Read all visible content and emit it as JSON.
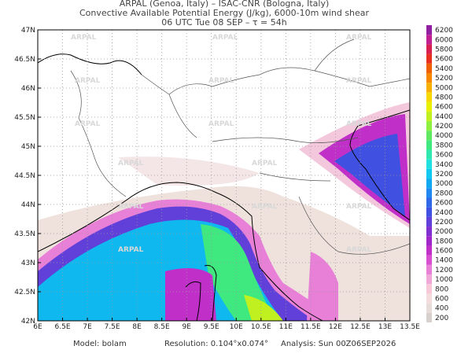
{
  "header": {
    "line1": "ARPAL (Genoa, Italy)  –  ISAC-CNR (Bologna, Italy)",
    "line2": "Convective Available Potential Energy (J/kg), 6000-10m wind shear",
    "line3": "06 UTC Tue 08 SEP  –  τ = 54h"
  },
  "map": {
    "watermark": "ARPAL",
    "lon_ticks": [
      "6E",
      "6.5E",
      "7E",
      "7.5E",
      "8E",
      "8.5E",
      "9E",
      "9.5E",
      "10E",
      "10.5E",
      "11E",
      "11.5E",
      "12E",
      "12.5E",
      "13E",
      "13.5E"
    ],
    "lat_ticks": [
      "42N",
      "42.5N",
      "43N",
      "43.5N",
      "44N",
      "44.5N",
      "45N",
      "45.5N",
      "46N",
      "46.5N",
      "47N"
    ]
  },
  "colorbar": {
    "levels": [
      200,
      400,
      600,
      800,
      1000,
      1200,
      1400,
      1600,
      1800,
      2000,
      2200,
      2400,
      2600,
      2800,
      3000,
      3200,
      3400,
      3600,
      3800,
      4000,
      4200,
      4400,
      4600,
      4800,
      5000,
      5200,
      5400,
      5600,
      5800,
      6000,
      6200
    ]
  },
  "footer": {
    "model": "Model: bolam",
    "resolution": "Resolution: 0.104°x0.074°",
    "analysis": "Analysis: Sun 00Z06SEP2026"
  }
}
